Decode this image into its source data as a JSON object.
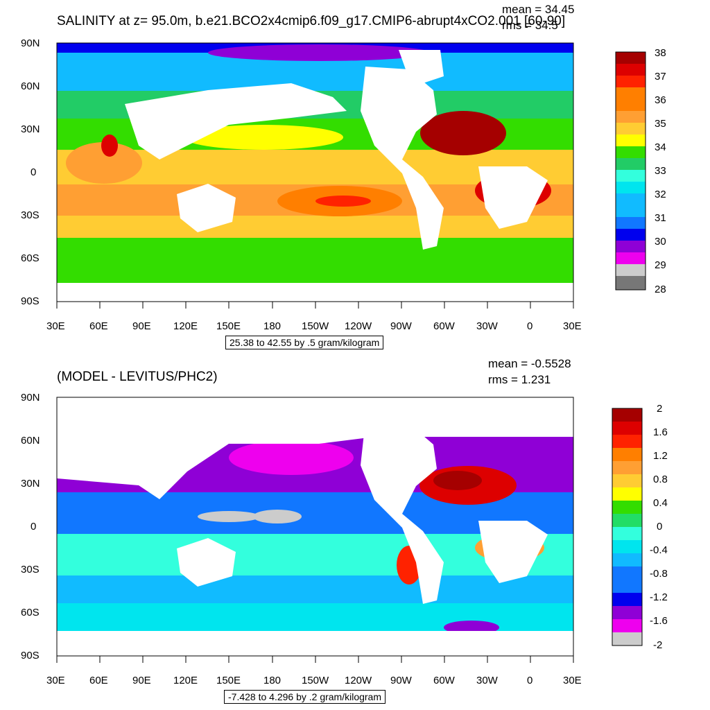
{
  "chart_data": [
    {
      "type": "heatmap",
      "title": "SALINITY at z=  95.0m, b.e21.BCO2x4cmip6.f09_g17.CMIP6-abrupt4xCO2.001 [60-90]",
      "stats": {
        "mean": "mean = 34.45",
        "rms": "rms = 34.5"
      },
      "xticks": [
        "30E",
        "60E",
        "90E",
        "120E",
        "150E",
        "180",
        "150W",
        "120W",
        "90W",
        "60W",
        "30W",
        "0",
        "30E"
      ],
      "yticks": [
        "90N",
        "60N",
        "30N",
        "0",
        "30S",
        "60S",
        "90S"
      ],
      "range_label": "25.38 to 42.55 by .5 gram/kilogram",
      "colorbar": {
        "labels": [
          "38",
          "37",
          "36",
          "35",
          "34",
          "33",
          "32",
          "31",
          "30",
          "29",
          "28"
        ],
        "colors": [
          "#a50000",
          "#dd0000",
          "#ff2200",
          "#ff7f00",
          "#ff9f33",
          "#ffcc33",
          "#ffff00",
          "#33dd00",
          "#22cc66",
          "#33ffdd",
          "#00e5ee",
          "#11bbff",
          "#1177ff",
          "#0000ee",
          "#8f00d6",
          "#ee00ee",
          "#cccccc",
          "#777777"
        ]
      }
    },
    {
      "type": "heatmap",
      "title": "(MODEL - LEVITUS/PHC2)",
      "stats": {
        "mean": "mean = -0.5528",
        "rms": "rms = 1.231"
      },
      "xticks": [
        "30E",
        "60E",
        "90E",
        "120E",
        "150E",
        "180",
        "150W",
        "120W",
        "90W",
        "60W",
        "30W",
        "0",
        "30E"
      ],
      "yticks": [
        "90N",
        "60N",
        "30N",
        "0",
        "30S",
        "60S",
        "90S"
      ],
      "range_label": "-7.428 to 4.296 by .2 gram/kilogram",
      "colorbar": {
        "labels": [
          "2",
          "1.6",
          "1.2",
          "0.8",
          "0.4",
          "0",
          "-0.4",
          "-0.8",
          "-1.2",
          "-1.6",
          "-2"
        ],
        "colors": [
          "#a50000",
          "#dd0000",
          "#ff2200",
          "#ff7f00",
          "#ff9f33",
          "#ffcc33",
          "#ffff00",
          "#33dd00",
          "#22dd66",
          "#33ffdd",
          "#00e5ee",
          "#11bbff",
          "#1177ff",
          "#0000ee",
          "#8f00d6",
          "#ee00ee",
          "#cccccc",
          "#777777"
        ]
      }
    }
  ]
}
